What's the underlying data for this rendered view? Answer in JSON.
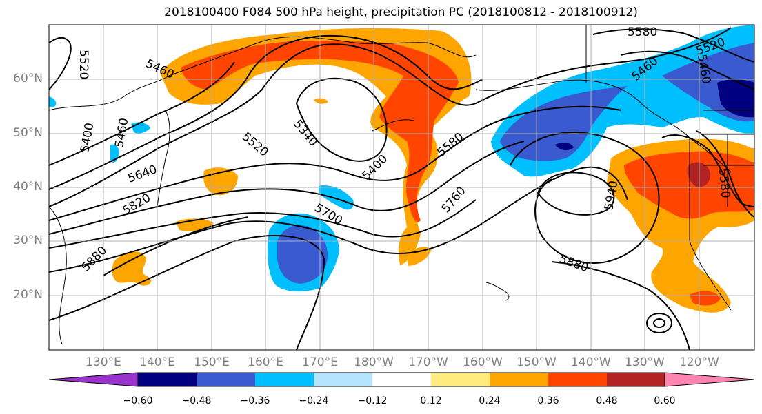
{
  "title": "2018100400 F084 500 hPa height, precipitation PC (2018100812 - 2018100912)",
  "map": {
    "lat_labels": [
      "60°N",
      "50°N",
      "40°N",
      "30°N",
      "20°N"
    ],
    "lon_labels": [
      "130°E",
      "140°E",
      "150°E",
      "160°E",
      "170°E",
      "180°W",
      "170°W",
      "160°W",
      "150°W",
      "140°W",
      "130°W",
      "120°W"
    ],
    "contour_labels": [
      "5520",
      "5460",
      "5400",
      "5460",
      "5640",
      "5820",
      "5880",
      "5520",
      "5340",
      "5400",
      "5700",
      "5580",
      "5760",
      "5880",
      "5940",
      "5460",
      "5580",
      "5520",
      "5460",
      "5580"
    ]
  },
  "colorbar": {
    "colors": [
      "#9933cc",
      "#000080",
      "#3a5bd0",
      "#00bfff",
      "#b3e5ff",
      "#ffffff",
      "#ffeb80",
      "#ffa500",
      "#ff4500",
      "#b22222",
      "#ff85b0"
    ],
    "ticks": [
      "−0.60",
      "−0.48",
      "−0.36",
      "−0.24",
      "−0.12",
      "0.12",
      "0.24",
      "0.36",
      "0.48",
      "0.60"
    ]
  }
}
